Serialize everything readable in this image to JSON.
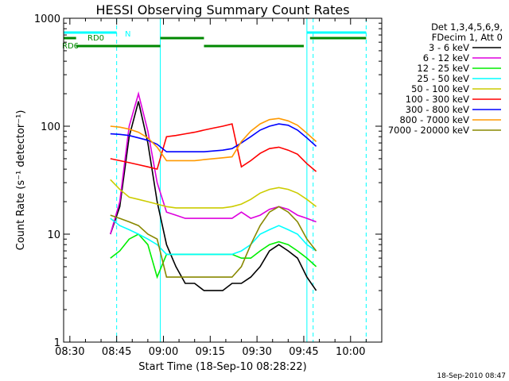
{
  "chart_data": {
    "type": "line",
    "title": "HESSI Observing Summary Count Rates",
    "xlabel": "Start Time (18-Sep-10 08:28:22)",
    "ylabel": "Count Rate (s⁻¹ detector⁻¹)",
    "yscale": "log",
    "ylim": [
      1,
      1000
    ],
    "xlim": [
      "08:28",
      "10:10"
    ],
    "x_ticks": [
      "08:30",
      "08:45",
      "09:00",
      "09:15",
      "09:30",
      "09:45",
      "10:00"
    ],
    "y_ticks": [
      "1",
      "10",
      "100",
      "1000"
    ],
    "x": [
      "08:43",
      "08:46",
      "08:49",
      "08:52",
      "08:55",
      "08:58",
      "09:01",
      "09:04",
      "09:07",
      "09:10",
      "09:13",
      "09:16",
      "09:19",
      "09:22",
      "09:25",
      "09:28",
      "09:31",
      "09:34",
      "09:37",
      "09:40",
      "09:43",
      "09:46",
      "09:49"
    ],
    "series": [
      {
        "name": "3 - 6 keV",
        "color": "#000000",
        "values": [
          10,
          18,
          80,
          170,
          70,
          20,
          8,
          5,
          3.5,
          3.5,
          3,
          3,
          3,
          3.5,
          3.5,
          4,
          5,
          7,
          8,
          7,
          6,
          4,
          3
        ]
      },
      {
        "name": "6 - 12 keV",
        "color": "#dd00dd",
        "values": [
          10,
          20,
          100,
          200,
          90,
          30,
          16,
          15,
          14,
          14,
          14,
          14,
          14,
          14,
          16,
          14,
          15,
          17,
          18,
          17,
          15,
          14,
          13
        ]
      },
      {
        "name": "12 - 25 keV",
        "color": "#00ee00",
        "values": [
          6,
          7,
          9,
          10,
          8,
          4,
          6.5,
          6.5,
          6.5,
          6.5,
          6.5,
          6.5,
          6.5,
          6.5,
          6,
          6,
          7,
          8,
          8.5,
          8,
          7,
          6,
          5
        ]
      },
      {
        "name": "25 - 50 keV",
        "color": "#00ffff",
        "values": [
          14,
          12,
          11,
          10,
          9,
          8,
          6.5,
          6.5,
          6.5,
          6.5,
          6.5,
          6.5,
          6.5,
          6.5,
          7,
          8,
          10,
          11,
          12,
          11,
          10,
          8,
          7
        ]
      },
      {
        "name": "50 - 100 keV",
        "color": "#cccc00",
        "values": [
          32,
          26,
          22,
          21,
          20,
          19,
          18,
          17.5,
          17.5,
          17.5,
          17.5,
          17.5,
          17.5,
          18,
          19,
          21,
          24,
          26,
          27,
          26,
          24,
          21,
          18
        ]
      },
      {
        "name": "100 - 300 keV",
        "color": "#ff0000",
        "values": [
          50,
          48,
          46,
          44,
          42,
          40,
          80,
          82,
          85,
          88,
          92,
          96,
          100,
          105,
          42,
          48,
          56,
          62,
          64,
          60,
          55,
          45,
          38
        ]
      },
      {
        "name": "300 - 800 keV",
        "color": "#0000ff",
        "values": [
          85,
          84,
          82,
          78,
          74,
          68,
          58,
          58,
          58,
          58,
          58,
          59,
          60,
          62,
          70,
          80,
          92,
          100,
          105,
          102,
          92,
          78,
          65
        ]
      },
      {
        "name": "800 - 7000 keV",
        "color": "#ff9900",
        "values": [
          100,
          98,
          94,
          88,
          78,
          64,
          48,
          48,
          48,
          48,
          49,
          50,
          51,
          52,
          72,
          90,
          105,
          115,
          118,
          112,
          102,
          86,
          72
        ]
      },
      {
        "name": "7000 - 20000 keV",
        "color": "#888800",
        "values": [
          15,
          14,
          13,
          12,
          10,
          9,
          4,
          4,
          4,
          4,
          4,
          4,
          4,
          4,
          5,
          8,
          12,
          16,
          18,
          16,
          13,
          9,
          7
        ]
      }
    ],
    "legend": {
      "header": [
        "Det 1,3,4,5,6,9,",
        "FDecim 1, Att 0"
      ],
      "position": "right"
    },
    "flag_labels": {
      "night": "N",
      "rd0": "RD0",
      "rd6": "RD6"
    },
    "flag_colors": {
      "night": "#00ffff",
      "rd": "#008800"
    },
    "flag_bars": {
      "night": [
        [
          "08:28",
          "08:45"
        ],
        [
          "09:46",
          "10:05"
        ]
      ],
      "rd0": [
        [
          "08:28",
          "08:32"
        ],
        [
          "08:59",
          "09:13"
        ],
        [
          "09:47",
          "10:05"
        ]
      ],
      "rd6": [
        [
          "08:32",
          "08:59"
        ],
        [
          "09:13",
          "09:45"
        ]
      ]
    },
    "vlines_solid": [
      "08:28",
      "08:59",
      "09:46"
    ],
    "vlines_dashed": [
      "08:45",
      "09:48",
      "10:05"
    ],
    "footer_date": "18-Sep-2010 08:47"
  }
}
